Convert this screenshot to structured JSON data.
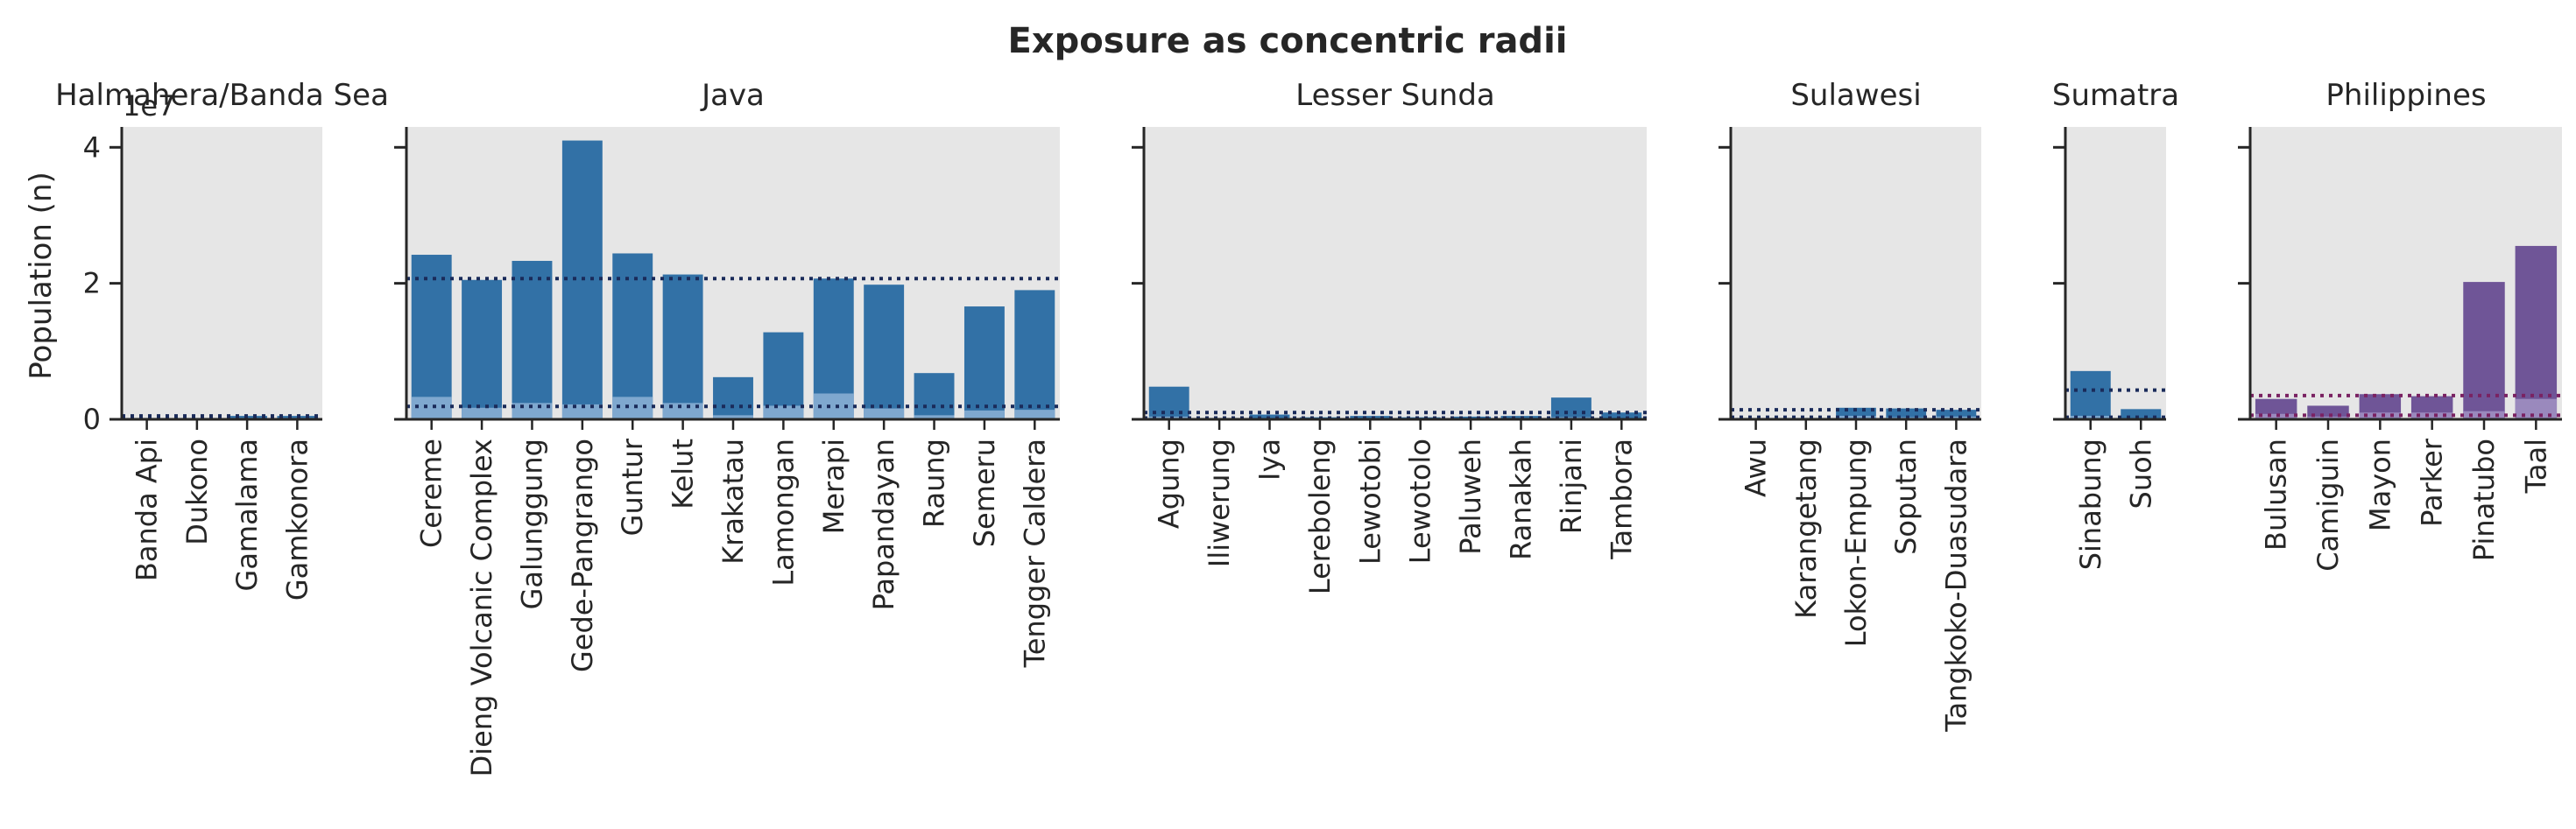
{
  "chart_data": {
    "type": "bar",
    "title": "Exposure as concentric radii",
    "ylabel": "Population (n)",
    "y_offset_label": "1e7",
    "ylim": [
      0,
      4.3
    ],
    "yticks": [
      0,
      2,
      4
    ],
    "grid": false,
    "colors": {
      "blue_dark": "#3271a6",
      "blue_light": "#7fa8cf",
      "purple_dark": "#6f5597",
      "purple_light": "#9a89bd",
      "blue_line": "#1a2b5a",
      "purple_line": "#7a2262",
      "panel_bg": "#e6e6e6"
    },
    "panels": [
      {
        "name": "Halmahera/Banda Sea",
        "color_scheme": "blue",
        "categories": [
          "Banda Api",
          "Dukono",
          "Gamalama",
          "Gamkonora"
        ],
        "outer": [
          0.02,
          0.02,
          0.05,
          0.05
        ],
        "inner": [
          0.01,
          0.01,
          0.02,
          0.02
        ],
        "line_outer": 0.05,
        "line_inner": 0.02
      },
      {
        "name": "Java",
        "color_scheme": "blue",
        "categories": [
          "Cereme",
          "Dieng Volcanic Complex",
          "Galunggung",
          "Gede-Pangrango",
          "Guntur",
          "Kelut",
          "Krakatau",
          "Lamongan",
          "Merapi",
          "Papandayan",
          "Raung",
          "Semeru",
          "Tengger Caldera"
        ],
        "outer": [
          2.42,
          2.05,
          2.33,
          4.1,
          2.44,
          2.13,
          0.62,
          1.28,
          2.07,
          1.98,
          0.68,
          1.66,
          1.9
        ],
        "inner": [
          0.33,
          0.17,
          0.24,
          0.22,
          0.33,
          0.24,
          0.06,
          0.2,
          0.38,
          0.16,
          0.06,
          0.13,
          0.14
        ],
        "line_outer": 2.07,
        "line_inner": 0.19
      },
      {
        "name": "Lesser Sunda",
        "color_scheme": "blue",
        "categories": [
          "Agung",
          "Iliwerung",
          "Iya",
          "Lereboleng",
          "Lewotobi",
          "Lewotolo",
          "Paluweh",
          "Ranakah",
          "Rinjani",
          "Tambora"
        ],
        "outer": [
          0.48,
          0.02,
          0.07,
          0.03,
          0.05,
          0.03,
          0.04,
          0.05,
          0.32,
          0.1
        ],
        "inner": [
          0.04,
          0.01,
          0.02,
          0.01,
          0.01,
          0.01,
          0.01,
          0.01,
          0.03,
          0.01
        ],
        "line_outer": 0.1,
        "line_inner": 0.02
      },
      {
        "name": "Sulawesi",
        "color_scheme": "blue",
        "categories": [
          "Awu",
          "Karangetang",
          "Lokon-Empung",
          "Soputan",
          "Tangkoko-Duasudara"
        ],
        "outer": [
          0.02,
          0.02,
          0.17,
          0.16,
          0.14
        ],
        "inner": [
          0.01,
          0.01,
          0.05,
          0.03,
          0.04
        ],
        "line_outer": 0.14,
        "line_inner": 0.03
      },
      {
        "name": "Sumatra",
        "color_scheme": "blue",
        "categories": [
          "Sinabung",
          "Suoh"
        ],
        "outer": [
          0.71,
          0.15
        ],
        "inner": [
          0.05,
          0.02
        ],
        "line_outer": 0.43,
        "line_inner": 0.03
      },
      {
        "name": "Philippines",
        "color_scheme": "purple",
        "categories": [
          "Bulusan",
          "Camiguin",
          "Mayon",
          "Parker",
          "Pinatubo",
          "Taal"
        ],
        "outer": [
          0.3,
          0.2,
          0.37,
          0.34,
          2.02,
          2.55
        ],
        "inner": [
          0.08,
          0.04,
          0.1,
          0.1,
          0.12,
          0.3
        ],
        "line_outer": 0.35,
        "line_inner": 0.06
      }
    ]
  }
}
